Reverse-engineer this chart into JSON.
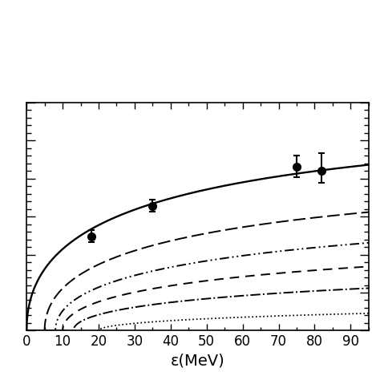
{
  "xlabel": "ε(MeV)",
  "xlim": [
    0,
    95
  ],
  "ylim": [
    0,
    1.5
  ],
  "data_points": {
    "x": [
      18,
      35,
      75,
      82
    ],
    "y": [
      0.62,
      0.82,
      1.08,
      1.05
    ],
    "yerr_lo": [
      0.04,
      0.04,
      0.07,
      0.08
    ],
    "yerr_hi": [
      0.04,
      0.04,
      0.07,
      0.12
    ]
  },
  "solid_params": {
    "A": 1.42,
    "k": 0.15,
    "threshold": 0,
    "power": 0.5
  },
  "dashed1_params": {
    "A": 1.1,
    "k": 0.13,
    "threshold": 5,
    "power": 0.5
  },
  "dashdotdot_params": {
    "A": 0.9,
    "k": 0.11,
    "threshold": 8,
    "power": 0.5
  },
  "dashed2_params": {
    "A": 0.7,
    "k": 0.1,
    "threshold": 10,
    "power": 0.5
  },
  "dashdot_params": {
    "A": 0.52,
    "k": 0.085,
    "threshold": 13,
    "power": 0.5
  },
  "dotted_params": {
    "A": 0.3,
    "k": 0.055,
    "threshold": 20,
    "power": 0.5
  },
  "background_color": "#ffffff",
  "figsize": [
    4.74,
    4.74
  ],
  "dpi": 100
}
